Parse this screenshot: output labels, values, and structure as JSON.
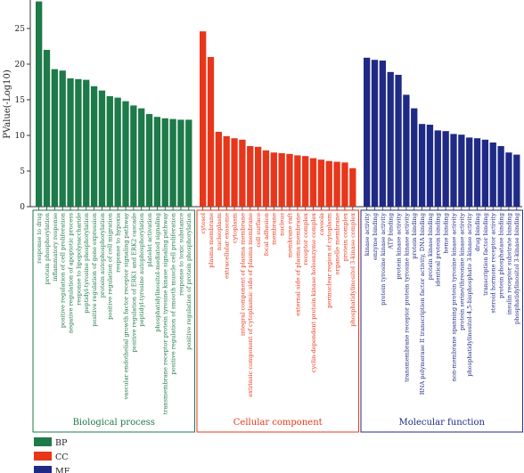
{
  "chart_data": {
    "type": "bar",
    "ylabel": "PValue(-Log10)",
    "ylim": [
      0,
      29
    ],
    "yticks": [
      0,
      5,
      10,
      15,
      20,
      25
    ],
    "grid": false,
    "legend_position": "bottom-left",
    "groups": [
      {
        "key": "BP",
        "name": "Biological process",
        "color": "#1d7a49",
        "categories": [
          "response to drug",
          "protein phosphorylation",
          "inflammatory response",
          "positive regulation of cell proliferation",
          "negative regulation of apoptotic process",
          "response to lipopolysaccharide",
          "peptidyl-tyrosine phosphorylation",
          "positive regulation of gene expression",
          "protein autophosphorylation",
          "positive regulation of cell migration",
          "response to hypoxia",
          "vascular endothelial growth factor receptor signaling pathway",
          "positive regulation of ERK1 and ERK2 cascade",
          "peptidyl-tyrosine autophosphorylation",
          "platelet activation",
          "phosphatidylinositol-mediated signaling",
          "transmembrane receptor protein tyrosine kinase signaling pathway",
          "positive regulation of smooth muscle cell proliferation",
          "response to toxic substance",
          "positive regulation of protein phosphorylation"
        ],
        "values": [
          28.8,
          22.0,
          19.3,
          19.1,
          18.0,
          17.9,
          17.8,
          16.9,
          16.3,
          15.5,
          15.3,
          14.8,
          14.2,
          13.8,
          13.0,
          12.6,
          12.4,
          12.3,
          12.2,
          12.2
        ]
      },
      {
        "key": "CC",
        "name": "Cellular component",
        "color": "#e8361b",
        "categories": [
          "cytosol",
          "plasma membrane",
          "nucleoplasm",
          "extracellular exosome",
          "cytoplasm",
          "integral component of plasma membrane",
          "extrinsic component of cytoplasmic side of plasma membrane",
          "cell surface",
          "focal adhesion",
          "membrane",
          "nucleus",
          "membrane raft",
          "external side of plasma membrane",
          "receptor complex",
          "cyclin-dependent protein kinase holoenzyme complex",
          "caveola",
          "perinuclear region of cytoplasm",
          "organelle membrane",
          "protein complex",
          "phosphatidylinositol 3-kinase complex"
        ],
        "values": [
          24.6,
          21.0,
          10.5,
          9.9,
          9.6,
          9.4,
          8.5,
          8.4,
          7.9,
          7.6,
          7.5,
          7.4,
          7.2,
          7.1,
          6.8,
          6.6,
          6.4,
          6.3,
          6.2,
          5.4
        ]
      },
      {
        "key": "MF",
        "name": "Molecular function",
        "color": "#1f2a86",
        "categories": [
          "kinase activity",
          "enzyme binding",
          "protein tyrosine kinase activity",
          "ATP binding",
          "protein kinase activity",
          "transmembrane receptor protein tyrosine kinase activity",
          "protein binding",
          "RNA polymerase II transcription factor activity, DNA binding",
          "protein kinase binding",
          "identical protein binding",
          "heme binding",
          "non-membrane spanning protein tyrosine kinase activity",
          "protein serine/threonine kinase activity",
          "phosphatidylinositol-4,5-bisphosphate 3-kinase activity",
          "drug binding",
          "transcription factor binding",
          "steroid hormone receptor activity",
          "protein phosphatase binding",
          "insulin receptor substrate binding",
          "phosphatidylinositol 3-kinase binding"
        ],
        "values": [
          20.9,
          20.6,
          20.5,
          18.9,
          18.5,
          15.7,
          13.8,
          11.6,
          11.5,
          10.7,
          10.6,
          10.2,
          10.1,
          9.7,
          9.6,
          9.4,
          9.0,
          8.5,
          7.6,
          7.3
        ]
      }
    ]
  }
}
